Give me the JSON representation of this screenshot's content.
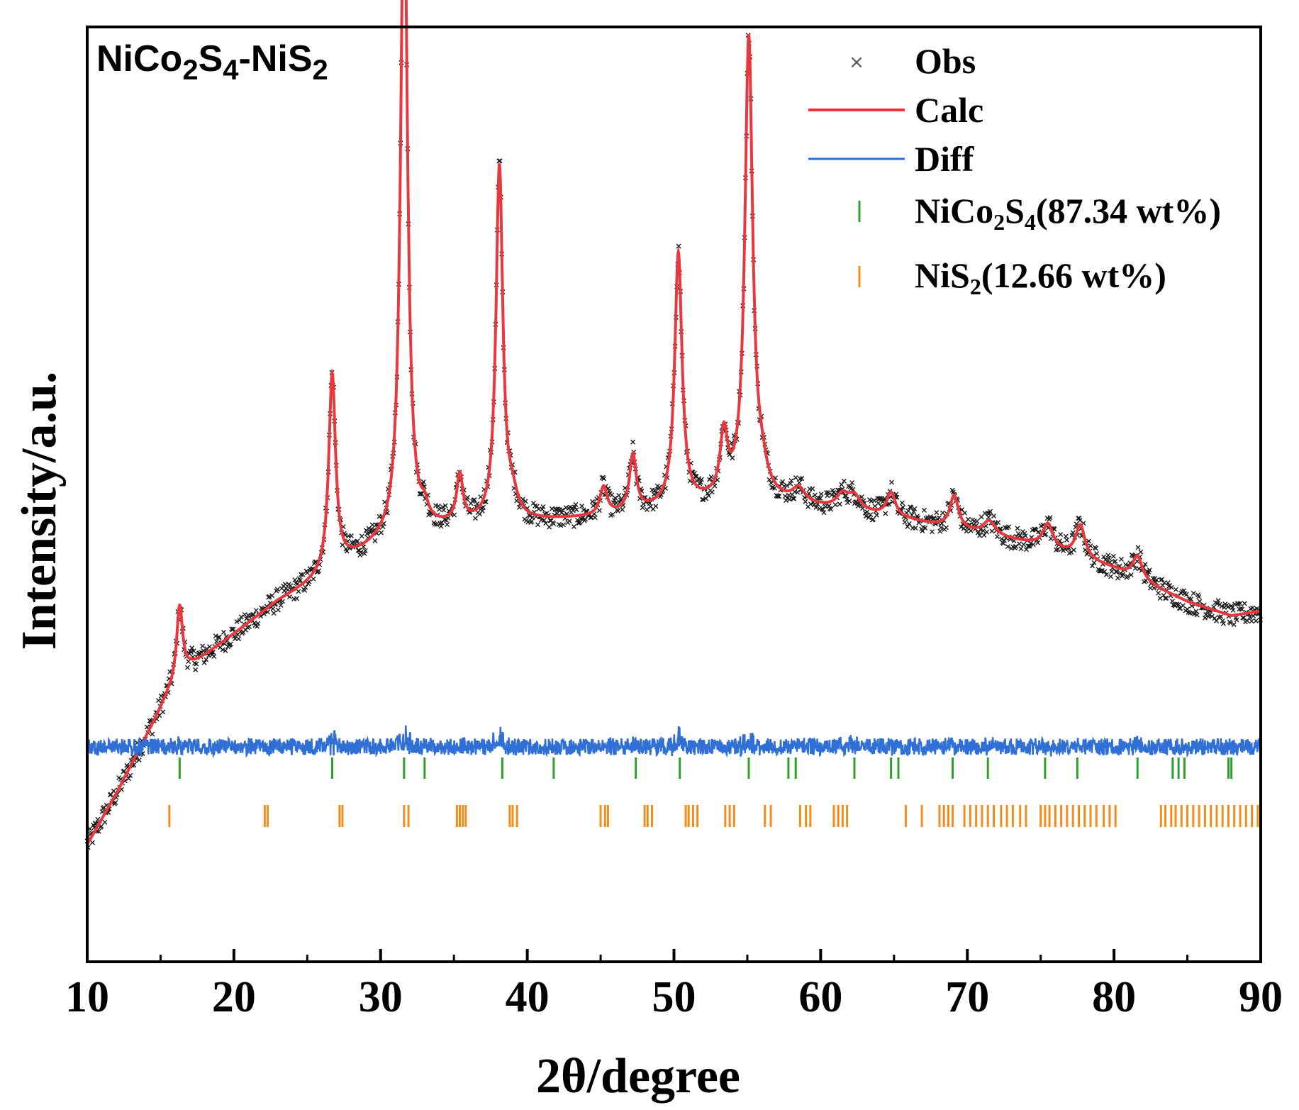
{
  "chart_data": {
    "type": "line",
    "title": {
      "main": "NiCo",
      "sub1": "2",
      "mid1": "S",
      "sub2": "4",
      "mid2": "-NiS",
      "sub3": "2"
    },
    "xlabel": "2θ/degree",
    "ylabel": "Intensity/a.u.",
    "xlim": [
      10,
      90
    ],
    "ylim": [
      0,
      100
    ],
    "x_ticks": [
      10,
      20,
      30,
      40,
      50,
      60,
      70,
      80,
      90
    ],
    "y_tick_labels": [],
    "legend": {
      "position": "top-right",
      "entries": [
        {
          "key": "obs",
          "label": "Obs",
          "color": "#333333",
          "marker": "x"
        },
        {
          "key": "calc",
          "label": "Calc",
          "color": "#e8383d",
          "marker": "line"
        },
        {
          "key": "diff",
          "label": "Diff",
          "color": "#2f6fd6",
          "marker": "line"
        },
        {
          "key": "phase1",
          "label_main": "NiCo",
          "sub1": "2",
          "mid": "S",
          "sub2": "4",
          "label_tail": "(87.34 wt%)",
          "color": "#2ca02c",
          "marker": "tick"
        },
        {
          "key": "phase2",
          "label_main": "NiS",
          "sub1": "2",
          "label_tail": "(12.66 wt%)",
          "color": "#f28c1a",
          "marker": "tick"
        }
      ]
    },
    "background": {
      "x": [
        10,
        12,
        14,
        15.5,
        17,
        20,
        23,
        26,
        28,
        30,
        32,
        35,
        40,
        45,
        50,
        55,
        60,
        65,
        70,
        75,
        80,
        85,
        88,
        90
      ],
      "y": [
        12.5,
        18,
        24,
        28.5,
        31.5,
        35,
        38.5,
        41,
        43,
        44.5,
        45.5,
        46.5,
        47,
        47.5,
        48.5,
        49.5,
        48.5,
        47.5,
        46,
        44.5,
        42,
        38.5,
        37,
        37.5
      ]
    },
    "peaks": {
      "position": [
        16.3,
        26.7,
        31.6,
        33.0,
        35.4,
        38.1,
        39.0,
        45.2,
        47.2,
        50.3,
        53.4,
        55.1,
        56.0,
        58.5,
        61.5,
        62.3,
        64.8,
        69.1,
        71.5,
        75.5,
        77.7,
        81.6
      ],
      "height": [
        8,
        21,
        72.5,
        1.5,
        5,
        38,
        2,
        3,
        6,
        27,
        6.5,
        49,
        2,
        1.5,
        1.5,
        1.5,
        2.5,
        3.5,
        1.5,
        2.5,
        3.5,
        2.5
      ],
      "width": [
        0.25,
        0.28,
        0.28,
        0.3,
        0.25,
        0.28,
        0.4,
        0.3,
        0.28,
        0.3,
        0.3,
        0.32,
        0.4,
        0.5,
        0.5,
        0.5,
        0.35,
        0.35,
        0.5,
        0.4,
        0.38,
        0.4
      ]
    },
    "phase1_ticks": [
      16.3,
      26.7,
      31.6,
      33.0,
      38.3,
      41.8,
      47.4,
      50.4,
      55.1,
      57.8,
      58.3,
      62.3,
      64.8,
      65.3,
      69.0,
      71.4,
      75.3,
      77.5,
      81.6,
      84.0,
      84.4,
      84.8,
      87.8,
      88.0
    ],
    "phase2_ticks": [
      15.6,
      22.1,
      22.3,
      27.2,
      27.4,
      31.6,
      31.9,
      35.2,
      35.4,
      35.6,
      35.8,
      38.8,
      39.0,
      39.3,
      45.0,
      45.3,
      45.5,
      48.0,
      48.2,
      48.5,
      50.8,
      51.0,
      51.3,
      51.6,
      53.5,
      53.8,
      54.1,
      56.2,
      56.6,
      58.6,
      59.0,
      59.3,
      60.9,
      61.2,
      61.5,
      61.8,
      65.8,
      66.9,
      68.1,
      68.4,
      68.7,
      69.0,
      69.8,
      70.2,
      70.6,
      71.0,
      71.4,
      71.8,
      72.3,
      72.7,
      73.1,
      73.6,
      74.0,
      75.0,
      75.3,
      75.6,
      76.0,
      76.4,
      76.8,
      77.2,
      77.6,
      78.0,
      78.4,
      78.8,
      79.3,
      79.7,
      80.1,
      83.2,
      83.5,
      83.9,
      84.2,
      84.6,
      85.0,
      85.4,
      85.8,
      86.2,
      86.6,
      87.0,
      87.4,
      87.8,
      88.2,
      88.6,
      89.0,
      89.4,
      89.8
    ]
  }
}
